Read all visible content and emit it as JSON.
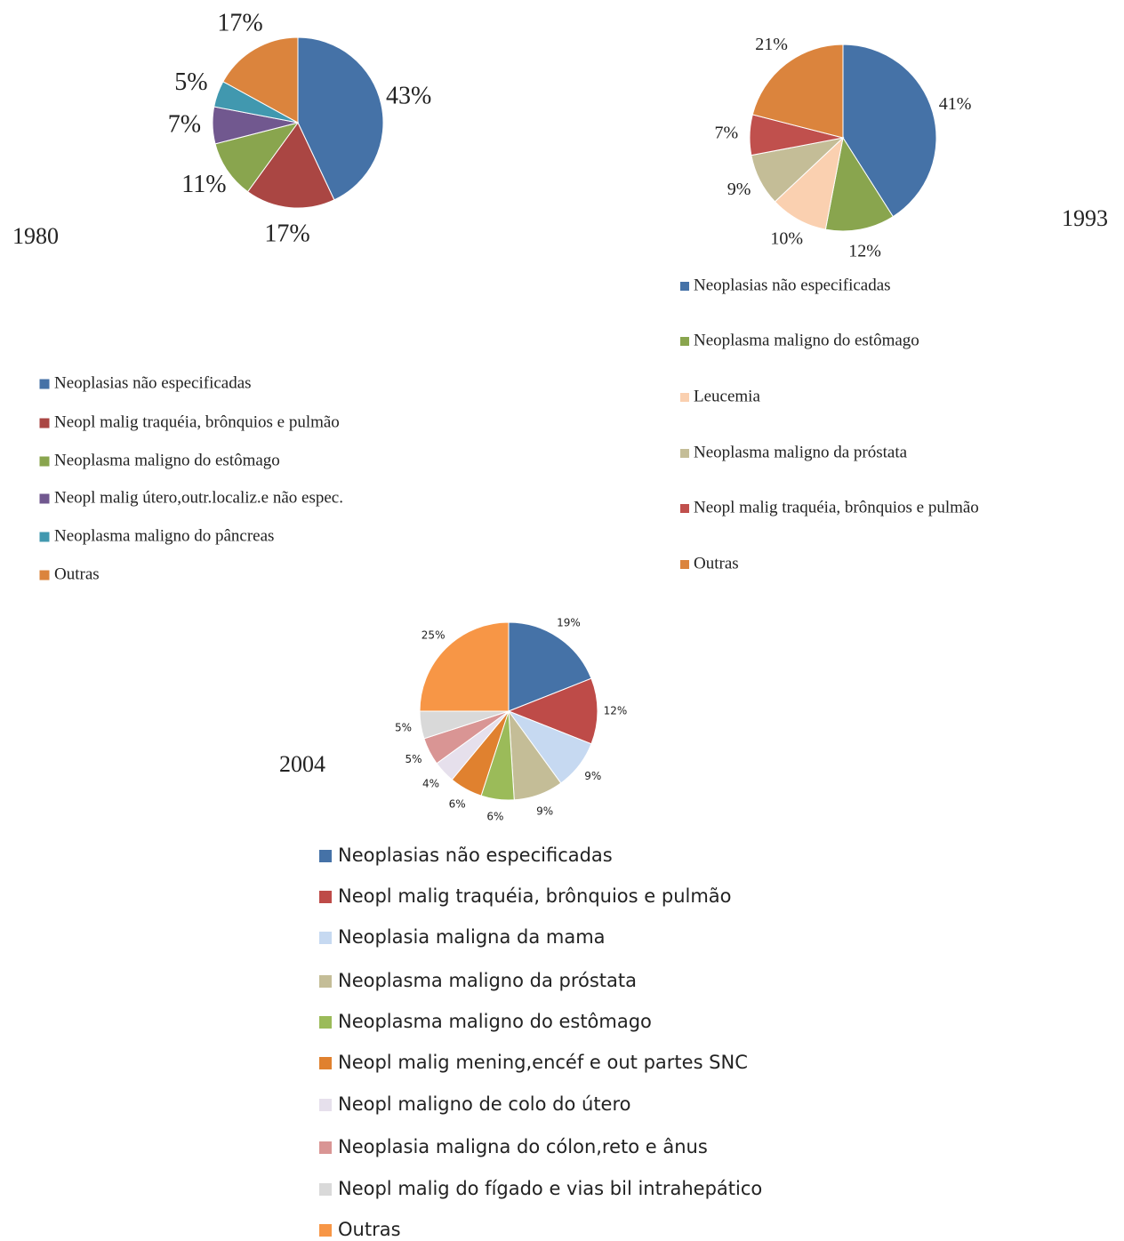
{
  "chart_data": [
    {
      "type": "pie",
      "title": "1980",
      "categories": [
        "Neoplasias não especificadas",
        "Neopl malig traquéia, brônquios e pulmão",
        "Neoplasma maligno do estômago",
        "Neopl malig útero,outr.localiz.e não espec.",
        "Neoplasma maligno do pâncreas",
        "Outras"
      ],
      "values": [
        43,
        17,
        11,
        7,
        5,
        17
      ],
      "value_labels": [
        "43%",
        "17%",
        "11%",
        "7%",
        "5%",
        "17%"
      ],
      "colors": [
        "#4572a7",
        "#aa4643",
        "#89a54e",
        "#71588f",
        "#4198af",
        "#db843d"
      ]
    },
    {
      "type": "pie",
      "title": "1993",
      "categories": [
        "Neoplasias não especificadas",
        "Neoplasma maligno do estômago",
        "Leucemia",
        "Neoplasma maligno da próstata",
        "Neopl malig traquéia, brônquios e pulmão",
        "Outras"
      ],
      "values": [
        41,
        12,
        10,
        9,
        7,
        21
      ],
      "value_labels": [
        "41%",
        "12%",
        "10%",
        "9%",
        "7%",
        "21%"
      ],
      "colors": [
        "#4572a7",
        "#89a54e",
        "#fad0b0",
        "#c4bd97",
        "#c0504d",
        "#db843d"
      ]
    },
    {
      "type": "pie",
      "title": "2004",
      "categories": [
        "Neoplasias não especificadas",
        "Neopl malig traquéia, brônquios e pulmão",
        "Neoplasia maligna da mama",
        "Neoplasma maligno da próstata",
        "Neoplasma maligno do estômago",
        "Neopl malig mening,encéf e out partes SNC",
        "Neopl maligno de colo do útero",
        "Neoplasia maligna do cólon,reto e ânus",
        "Neopl malig do fígado e vias bil intrahepático",
        "Outras"
      ],
      "values": [
        19,
        12,
        9,
        9,
        6,
        6,
        4,
        5,
        5,
        25
      ],
      "value_labels": [
        "19%",
        "12%",
        "9%",
        "9%",
        "6%",
        "6%",
        "4%",
        "5%",
        "5%",
        "25%"
      ],
      "colors": [
        "#4572a7",
        "#be4b48",
        "#c6d9f1",
        "#c4bd97",
        "#9bbb59",
        "#e0812f",
        "#e6e0ec",
        "#d99594",
        "#d9d9d9",
        "#f79646"
      ]
    }
  ]
}
